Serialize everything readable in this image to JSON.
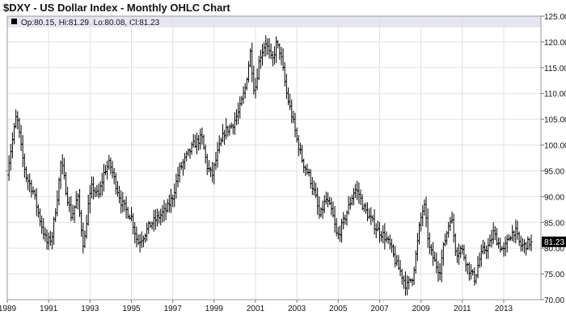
{
  "chart_data": {
    "type": "ohlc",
    "title": "$DXY - US Dollar Index - Monthly OHLC Chart",
    "legend": {
      "text": "Op:80.15, Hi:81.29, Lo:80.08, Cl:81.23",
      "placement": "top-left"
    },
    "y_axis": {
      "side": "right",
      "ylim": [
        70,
        125
      ],
      "ticks": [
        "125.00",
        "120.00",
        "115.00",
        "110.00",
        "105.00",
        "100.00",
        "95.00",
        "90.00",
        "85.00",
        "80.00",
        "75.00",
        "70.00"
      ],
      "tick_values": [
        125,
        120,
        115,
        110,
        105,
        100,
        95,
        90,
        85,
        80,
        75,
        70
      ]
    },
    "x_axis": {
      "xlim": [
        1989.0,
        2014.8
      ],
      "ticks": [
        "1989",
        "1991",
        "1993",
        "1995",
        "1997",
        "1999",
        "2001",
        "2003",
        "2005",
        "2007",
        "2009",
        "2011",
        "2013"
      ],
      "tick_values": [
        1989,
        1991,
        1993,
        1995,
        1997,
        1999,
        2001,
        2003,
        2005,
        2007,
        2009,
        2011,
        2013
      ]
    },
    "grid": true,
    "last_value_label": "81.23",
    "last_value": 81.23,
    "bar_color": "#000000",
    "close_path": [
      [
        1989.0,
        95.0
      ],
      [
        1989.25,
        101.0
      ],
      [
        1989.45,
        106.0
      ],
      [
        1989.7,
        98.5
      ],
      [
        1989.9,
        94.0
      ],
      [
        1990.25,
        91.0
      ],
      [
        1990.55,
        86.0
      ],
      [
        1990.9,
        81.0
      ],
      [
        1991.15,
        82.0
      ],
      [
        1991.45,
        91.0
      ],
      [
        1991.6,
        97.0
      ],
      [
        1991.85,
        91.0
      ],
      [
        1992.1,
        86.0
      ],
      [
        1992.4,
        90.0
      ],
      [
        1992.7,
        80.0
      ],
      [
        1992.9,
        88.0
      ],
      [
        1993.1,
        92.0
      ],
      [
        1993.4,
        90.0
      ],
      [
        1993.7,
        95.0
      ],
      [
        1993.95,
        96.5
      ],
      [
        1994.2,
        93.0
      ],
      [
        1994.5,
        89.0
      ],
      [
        1994.8,
        87.0
      ],
      [
        1995.0,
        86.0
      ],
      [
        1995.3,
        81.0
      ],
      [
        1995.6,
        82.5
      ],
      [
        1995.9,
        84.5
      ],
      [
        1996.3,
        86.0
      ],
      [
        1996.7,
        87.5
      ],
      [
        1997.0,
        90.0
      ],
      [
        1997.3,
        95.0
      ],
      [
        1997.7,
        98.0
      ],
      [
        1998.0,
        100.0
      ],
      [
        1998.4,
        101.5
      ],
      [
        1998.65,
        96.0
      ],
      [
        1998.9,
        94.0
      ],
      [
        1999.2,
        99.0
      ],
      [
        1999.5,
        102.5
      ],
      [
        1999.9,
        104.0
      ],
      [
        2000.2,
        106.5
      ],
      [
        2000.5,
        111.0
      ],
      [
        2000.75,
        118.0
      ],
      [
        2000.95,
        110.0
      ],
      [
        2001.2,
        117.0
      ],
      [
        2001.5,
        120.0
      ],
      [
        2001.8,
        116.0
      ],
      [
        2002.0,
        119.5
      ],
      [
        2002.2,
        118.0
      ],
      [
        2002.5,
        110.0
      ],
      [
        2002.8,
        105.0
      ],
      [
        2003.0,
        101.0
      ],
      [
        2003.3,
        96.5
      ],
      [
        2003.6,
        94.0
      ],
      [
        2003.9,
        90.0
      ],
      [
        2004.1,
        86.0
      ],
      [
        2004.4,
        89.5
      ],
      [
        2004.7,
        87.0
      ],
      [
        2004.95,
        82.0
      ],
      [
        2005.2,
        84.5
      ],
      [
        2005.5,
        88.0
      ],
      [
        2005.8,
        91.5
      ],
      [
        2006.0,
        90.5
      ],
      [
        2006.2,
        88.0
      ],
      [
        2006.5,
        86.0
      ],
      [
        2006.9,
        83.5
      ],
      [
        2007.2,
        82.5
      ],
      [
        2007.5,
        80.5
      ],
      [
        2007.8,
        77.0
      ],
      [
        2008.0,
        75.5
      ],
      [
        2008.3,
        72.5
      ],
      [
        2008.6,
        74.5
      ],
      [
        2008.8,
        80.0
      ],
      [
        2008.95,
        85.0
      ],
      [
        2009.15,
        88.5
      ],
      [
        2009.4,
        80.0
      ],
      [
        2009.7,
        77.0
      ],
      [
        2009.9,
        75.5
      ],
      [
        2010.1,
        80.5
      ],
      [
        2010.45,
        86.5
      ],
      [
        2010.7,
        79.0
      ],
      [
        2010.95,
        80.0
      ],
      [
        2011.3,
        76.0
      ],
      [
        2011.6,
        74.0
      ],
      [
        2011.8,
        77.5
      ],
      [
        2012.0,
        79.5
      ],
      [
        2012.3,
        80.5
      ],
      [
        2012.5,
        83.0
      ],
      [
        2012.8,
        80.5
      ],
      [
        2013.0,
        79.5
      ],
      [
        2013.3,
        82.5
      ],
      [
        2013.55,
        83.5
      ],
      [
        2013.8,
        80.5
      ],
      [
        2014.0,
        80.5
      ],
      [
        2014.3,
        81.23
      ]
    ]
  }
}
